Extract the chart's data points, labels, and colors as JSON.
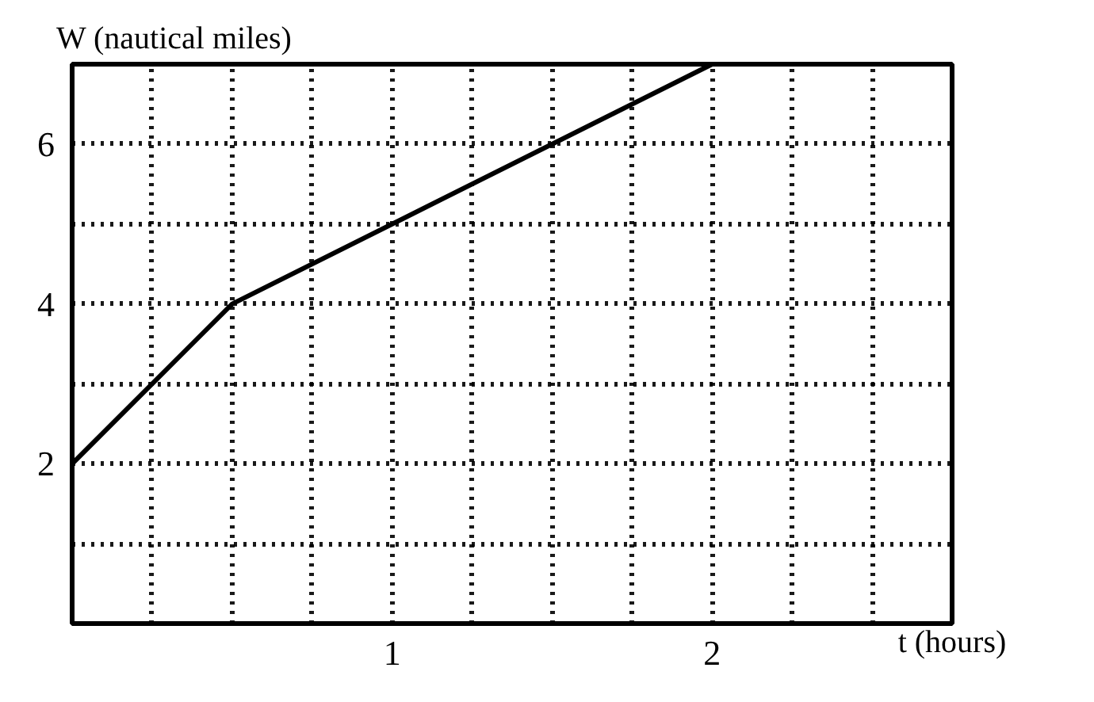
{
  "chart_data": {
    "type": "line",
    "xlabel": "t (hours)",
    "ylabel": "W (nautical miles)",
    "x": [
      0,
      0.5,
      2
    ],
    "series": [
      {
        "color": "#000000",
        "values": [
          2,
          4,
          7
        ]
      }
    ],
    "xlim": [
      0,
      2.75
    ],
    "ylim": [
      0,
      7
    ],
    "xticks": [
      {
        "value": 0.25,
        "label": null
      },
      {
        "value": 0.5,
        "label": null
      },
      {
        "value": 0.75,
        "label": null
      },
      1,
      {
        "value": 1.25,
        "label": null
      },
      {
        "value": 1.5,
        "label": null
      },
      {
        "value": 1.75,
        "label": null
      },
      2,
      {
        "value": 2.25,
        "label": null
      },
      {
        "value": 2.5,
        "label": null
      }
    ],
    "yticks": [
      {
        "value": 1,
        "label": null
      },
      2,
      {
        "value": 3,
        "label": null
      },
      4,
      {
        "value": 5,
        "label": null
      },
      6
    ],
    "grid": true,
    "line_style": "solid"
  }
}
